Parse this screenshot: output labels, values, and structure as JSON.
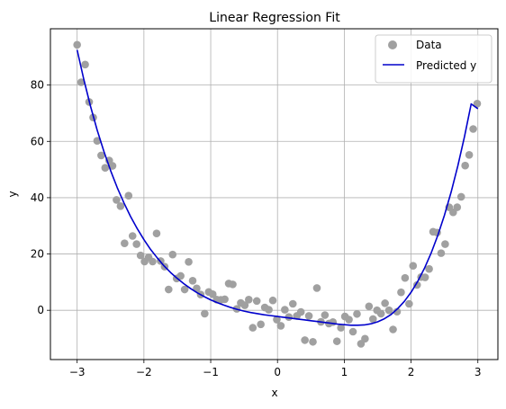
{
  "chart_data": {
    "type": "scatter",
    "title": "Linear Regression Fit",
    "xlabel": "x",
    "ylabel": "y",
    "xlim": [
      -3.4,
      3.3
    ],
    "ylim": [
      -17.5,
      100
    ],
    "xticks": [
      -3,
      -2,
      -1,
      0,
      1,
      2,
      3
    ],
    "xtick_labels": [
      "−3",
      "−2",
      "−1",
      "0",
      "1",
      "2",
      "3"
    ],
    "yticks": [
      0,
      20,
      40,
      60,
      80
    ],
    "ytick_labels": [
      "0",
      "20",
      "40",
      "60",
      "80"
    ],
    "grid": true,
    "legend_position": "top-right",
    "series": [
      {
        "name": "Data",
        "kind": "scatter",
        "color": "#a0a0a0",
        "points": [
          [
            -3.0,
            94.3
          ],
          [
            -2.94,
            81.0
          ],
          [
            -2.88,
            87.3
          ],
          [
            -2.82,
            74.0
          ],
          [
            -2.76,
            68.5
          ],
          [
            -2.7,
            60.2
          ],
          [
            -2.64,
            55.0
          ],
          [
            -2.58,
            50.6
          ],
          [
            -2.52,
            53.2
          ],
          [
            -2.47,
            51.3
          ],
          [
            -2.41,
            39.2
          ],
          [
            -2.35,
            37.0
          ],
          [
            -2.29,
            23.8
          ],
          [
            -2.23,
            40.7
          ],
          [
            -2.17,
            26.4
          ],
          [
            -2.11,
            23.5
          ],
          [
            -2.05,
            19.5
          ],
          [
            -1.99,
            17.3
          ],
          [
            -1.93,
            18.8
          ],
          [
            -1.87,
            17.3
          ],
          [
            -1.81,
            27.3
          ],
          [
            -1.75,
            17.5
          ],
          [
            -1.69,
            15.5
          ],
          [
            -1.63,
            7.4
          ],
          [
            -1.57,
            19.8
          ],
          [
            -1.51,
            11.3
          ],
          [
            -1.45,
            12.2
          ],
          [
            -1.39,
            7.4
          ],
          [
            -1.33,
            17.2
          ],
          [
            -1.27,
            10.5
          ],
          [
            -1.21,
            7.8
          ],
          [
            -1.15,
            5.6
          ],
          [
            -1.09,
            -1.2
          ],
          [
            -1.03,
            6.5
          ],
          [
            -0.97,
            5.7
          ],
          [
            -0.91,
            3.8
          ],
          [
            -0.85,
            3.7
          ],
          [
            -0.79,
            3.9
          ],
          [
            -0.73,
            9.5
          ],
          [
            -0.67,
            9.2
          ],
          [
            -0.61,
            0.5
          ],
          [
            -0.55,
            2.6
          ],
          [
            -0.49,
            1.8
          ],
          [
            -0.43,
            3.8
          ],
          [
            -0.37,
            -6.2
          ],
          [
            -0.31,
            3.3
          ],
          [
            -0.25,
            -5.0
          ],
          [
            -0.19,
            1.0
          ],
          [
            -0.13,
            0.2
          ],
          [
            -0.07,
            3.5
          ],
          [
            -0.01,
            -3.3
          ],
          [
            0.05,
            -5.5
          ],
          [
            0.11,
            0.2
          ],
          [
            0.17,
            -2.4
          ],
          [
            0.23,
            2.3
          ],
          [
            0.29,
            -2.0
          ],
          [
            0.35,
            -0.6
          ],
          [
            0.41,
            -10.6
          ],
          [
            0.47,
            -2.0
          ],
          [
            0.53,
            -11.2
          ],
          [
            0.59,
            7.9
          ],
          [
            0.65,
            -4.1
          ],
          [
            0.71,
            -1.7
          ],
          [
            0.77,
            -4.7
          ],
          [
            0.83,
            -4.2
          ],
          [
            0.89,
            -11.0
          ],
          [
            0.95,
            -6.2
          ],
          [
            1.01,
            -2.2
          ],
          [
            1.07,
            -3.3
          ],
          [
            1.13,
            -7.6
          ],
          [
            1.19,
            -1.3
          ],
          [
            1.25,
            -11.9
          ],
          [
            1.31,
            -10.1
          ],
          [
            1.37,
            1.4
          ],
          [
            1.43,
            -3.1
          ],
          [
            1.49,
            0.0
          ],
          [
            1.55,
            -1.2
          ],
          [
            1.61,
            2.5
          ],
          [
            1.67,
            0.0
          ],
          [
            1.73,
            -6.8
          ],
          [
            1.79,
            -0.5
          ],
          [
            1.85,
            6.4
          ],
          [
            1.91,
            11.5
          ],
          [
            1.97,
            2.3
          ],
          [
            2.03,
            15.8
          ],
          [
            2.09,
            9.0
          ],
          [
            2.15,
            11.8
          ],
          [
            2.21,
            11.7
          ],
          [
            2.27,
            14.7
          ],
          [
            2.33,
            27.9
          ],
          [
            2.39,
            27.6
          ],
          [
            2.45,
            20.3
          ],
          [
            2.51,
            23.5
          ],
          [
            2.57,
            36.6
          ],
          [
            2.63,
            34.8
          ],
          [
            2.69,
            36.6
          ],
          [
            2.75,
            40.3
          ],
          [
            2.81,
            51.4
          ],
          [
            2.87,
            55.2
          ],
          [
            2.93,
            64.4
          ],
          [
            2.99,
            73.4
          ]
        ]
      },
      {
        "name": "Predicted y",
        "kind": "line",
        "color": "#0000cc",
        "points": [
          [
            -3.0,
            92.5
          ],
          [
            -2.9,
            82.0
          ],
          [
            -2.8,
            72.5
          ],
          [
            -2.7,
            64.0
          ],
          [
            -2.6,
            56.5
          ],
          [
            -2.5,
            49.7
          ],
          [
            -2.4,
            43.6
          ],
          [
            -2.3,
            38.2
          ],
          [
            -2.2,
            33.3
          ],
          [
            -2.1,
            29.0
          ],
          [
            -2.0,
            25.1
          ],
          [
            -1.9,
            21.6
          ],
          [
            -1.8,
            18.6
          ],
          [
            -1.7,
            15.8
          ],
          [
            -1.6,
            13.4
          ],
          [
            -1.5,
            11.3
          ],
          [
            -1.4,
            9.4
          ],
          [
            -1.3,
            7.7
          ],
          [
            -1.2,
            6.2
          ],
          [
            -1.1,
            4.9
          ],
          [
            -1.0,
            3.7
          ],
          [
            -0.9,
            2.7
          ],
          [
            -0.8,
            1.8
          ],
          [
            -0.7,
            1.0
          ],
          [
            -0.6,
            0.3
          ],
          [
            -0.5,
            -0.3
          ],
          [
            -0.4,
            -0.8
          ],
          [
            -0.3,
            -1.2
          ],
          [
            -0.2,
            -1.6
          ],
          [
            -0.1,
            -1.9
          ],
          [
            0.0,
            -2.2
          ],
          [
            0.1,
            -2.5
          ],
          [
            0.2,
            -2.8
          ],
          [
            0.3,
            -3.1
          ],
          [
            0.4,
            -3.4
          ],
          [
            0.5,
            -3.7
          ],
          [
            0.6,
            -4.0
          ],
          [
            0.7,
            -4.3
          ],
          [
            0.8,
            -4.6
          ],
          [
            0.9,
            -4.9
          ],
          [
            1.0,
            -5.1
          ],
          [
            1.1,
            -5.3
          ],
          [
            1.2,
            -5.3
          ],
          [
            1.3,
            -5.2
          ],
          [
            1.4,
            -4.8
          ],
          [
            1.5,
            -4.1
          ],
          [
            1.6,
            -3.0
          ],
          [
            1.7,
            -1.5
          ],
          [
            1.8,
            0.6
          ],
          [
            1.9,
            3.2
          ],
          [
            2.0,
            6.4
          ],
          [
            2.1,
            10.3
          ],
          [
            2.2,
            14.9
          ],
          [
            2.3,
            20.3
          ],
          [
            2.4,
            26.6
          ],
          [
            2.5,
            33.8
          ],
          [
            2.6,
            42.0
          ],
          [
            2.7,
            51.3
          ],
          [
            2.8,
            61.7
          ],
          [
            2.9,
            73.3
          ],
          [
            3.0,
            71.6
          ]
        ]
      }
    ]
  }
}
